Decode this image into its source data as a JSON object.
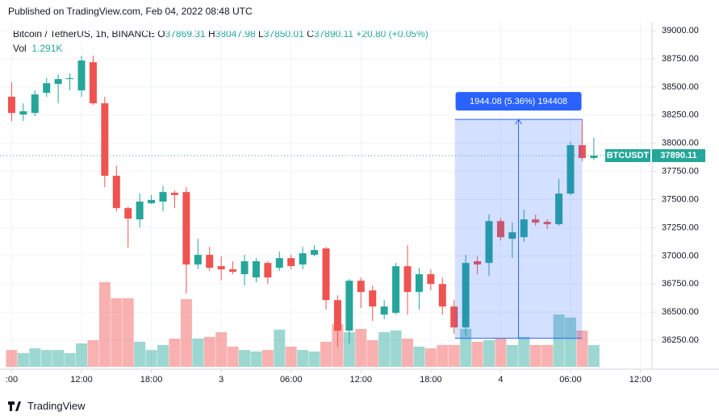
{
  "published": "Published on TradingView.com, Feb 04, 2022 08:48 UTC",
  "brand": "TradingView",
  "chart_data": {
    "type": "candlestick",
    "title": "Bitcoin / TetherUS, 1h, BINANCE",
    "symbol": "BTCUSDT",
    "ohlc_labels": [
      "O",
      "H",
      "L",
      "C"
    ],
    "change": "+20.80 (+0.05%)",
    "volume_name": "Vol",
    "volume_label": "1.291K",
    "open": [
      38413,
      38255,
      38269,
      38448,
      38527,
      38570,
      38470,
      38720,
      38355,
      37711,
      37424,
      37324,
      37467,
      37482,
      37560,
      37567,
      36923,
      37009,
      36909,
      36880,
      36837,
      36808,
      36937,
      36894,
      36980,
      36923,
      37009,
      37066,
      36607,
      36335,
      36779,
      36693,
      36478,
      36493,
      36908,
      36679,
      36837,
      36750,
      36550,
      36364,
      36952,
      36937,
      37309,
      37152,
      37166,
      37324,
      37302,
      37281,
      37553,
      37983,
      37869.31
    ],
    "high": [
      38542,
      38355,
      38470,
      38578,
      38612,
      38620,
      38778,
      38778,
      38413,
      37800,
      37438,
      37553,
      37540,
      37622,
      37580,
      37610,
      37152,
      37080,
      36995,
      36952,
      37009,
      36980,
      36952,
      37038,
      37010,
      37080,
      37095,
      37080,
      36650,
      36794,
      36808,
      36736,
      36607,
      36937,
      37095,
      36894,
      36880,
      36808,
      36607,
      37009,
      36995,
      37367,
      37338,
      37295,
      37410,
      37367,
      37324,
      37682,
      38012,
      38212,
      38047.98
    ],
    "low": [
      38198,
      38198,
      38240,
      38412,
      38355,
      38470,
      38412,
      38340,
      37610,
      37395,
      37073,
      37252,
      37460,
      37395,
      37424,
      36664,
      36880,
      36866,
      36780,
      36837,
      36736,
      36765,
      36750,
      36866,
      36880,
      36880,
      36995,
      36521,
      36192,
      36220,
      36536,
      36422,
      36436,
      36478,
      36478,
      36521,
      36693,
      36478,
      36307,
      36292,
      36837,
      36823,
      37137,
      36980,
      37123,
      37266,
      37238,
      37266,
      37538,
      37840,
      37850.01
    ],
    "close": [
      38269,
      38284,
      38434,
      38534,
      38570,
      38578,
      38735,
      38355,
      37711,
      37424,
      37331,
      37482,
      37496,
      37567,
      37540,
      36923,
      37009,
      36894,
      36880,
      36858,
      36952,
      36952,
      36808,
      36980,
      36909,
      37023,
      37052,
      36607,
      36335,
      36779,
      36679,
      36550,
      36550,
      36908,
      36679,
      36837,
      36750,
      36550,
      36364,
      36937,
      36923,
      37309,
      37166,
      37209,
      37324,
      37295,
      37281,
      37553,
      37983,
      37869,
      37890.11
    ],
    "volume": [
      1000,
      820,
      1100,
      1000,
      1000,
      820,
      1390,
      1580,
      5040,
      4080,
      4080,
      1490,
      1000,
      1300,
      1680,
      4030,
      1680,
      1780,
      2060,
      1200,
      1000,
      910,
      1000,
      2210,
      1200,
      1000,
      910,
      1490,
      2540,
      2060,
      2260,
      1580,
      2060,
      2160,
      1680,
      1200,
      1100,
      1300,
      1300,
      2260,
      1490,
      1580,
      1680,
      1300,
      1780,
      1300,
      1300,
      3120,
      2930,
      2160,
      1291
    ],
    "up_color": "#26a69a",
    "down_color": "#ef5350",
    "xlim": [
      -1,
      55
    ],
    "xticks": [
      {
        "value": 0,
        "label": ":00"
      },
      {
        "value": 6,
        "label": "12:00"
      },
      {
        "value": 12,
        "label": "18:00"
      },
      {
        "value": 18,
        "label": "3"
      },
      {
        "value": 24,
        "label": "06:00"
      },
      {
        "value": 30,
        "label": "12:00"
      },
      {
        "value": 36,
        "label": "18:00"
      },
      {
        "value": 42,
        "label": "4"
      },
      {
        "value": 48,
        "label": "06:00"
      },
      {
        "value": 54,
        "label": "12:00"
      }
    ],
    "ylim": [
      35993,
      39072
    ],
    "yticks": [
      {
        "value": 36250,
        "label": "36250.00"
      },
      {
        "value": 36500,
        "label": "36500.00"
      },
      {
        "value": 36750,
        "label": "36750.00"
      },
      {
        "value": 37000,
        "label": "37000.00"
      },
      {
        "value": 37250,
        "label": "37250.00"
      },
      {
        "value": 37500,
        "label": "37500.00"
      },
      {
        "value": 37750,
        "label": "37750.00"
      },
      {
        "value": 38000,
        "label": "38000.00"
      },
      {
        "value": 38250,
        "label": "38250.00"
      },
      {
        "value": 38500,
        "label": "38500.00"
      },
      {
        "value": 38750,
        "label": "38750.00"
      },
      {
        "value": 39000,
        "label": "39000.00"
      }
    ],
    "grid": true,
    "measure": {
      "label": "1944.08 (5.36%) 194408",
      "low": 36268,
      "high": 38212.08,
      "start": 38,
      "end": 49,
      "color": "#2962ff"
    }
  }
}
